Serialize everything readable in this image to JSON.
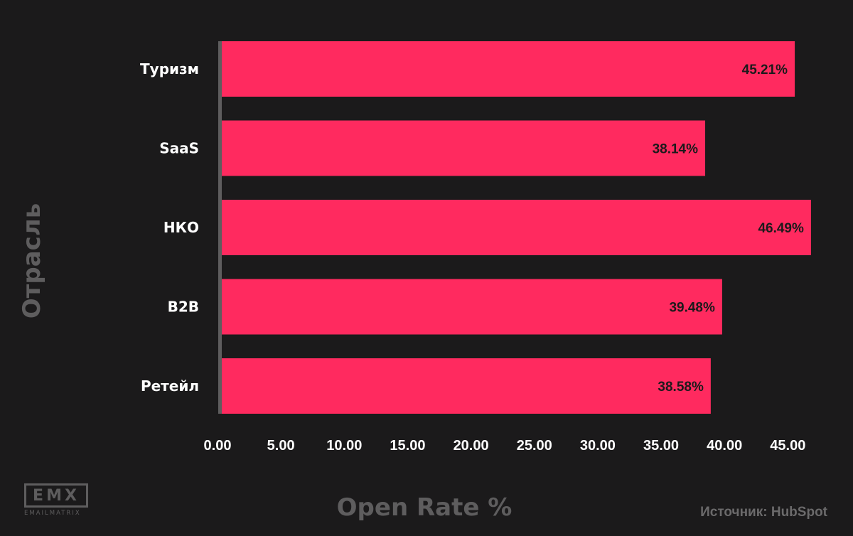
{
  "chart_data": {
    "type": "bar",
    "orientation": "horizontal",
    "categories": [
      "Туризм",
      "SaaS",
      "НКО",
      "B2B",
      "Ретейл"
    ],
    "values": [
      45.21,
      38.14,
      46.49,
      39.48,
      38.58
    ],
    "value_labels": [
      "45.21%",
      "38.14%",
      "46.49%",
      "39.48%",
      "38.58%"
    ],
    "x_ticks": [
      "0.00",
      "5.00",
      "10.00",
      "15.00",
      "20.00",
      "25.00",
      "30.00",
      "35.00",
      "40.00",
      "45.00"
    ],
    "xlim": [
      0,
      47
    ],
    "xlabel": "Open Rate %",
    "ylabel": "Отрасль",
    "grid": false,
    "colors": {
      "bar": "#ff2a5f",
      "axis": "#5e5d5e",
      "background": "#1b1a1b"
    }
  },
  "footer": {
    "source": "Источник: HubSpot",
    "logo_text": "EMX",
    "logo_subtext": "EMAILMATRIX"
  }
}
